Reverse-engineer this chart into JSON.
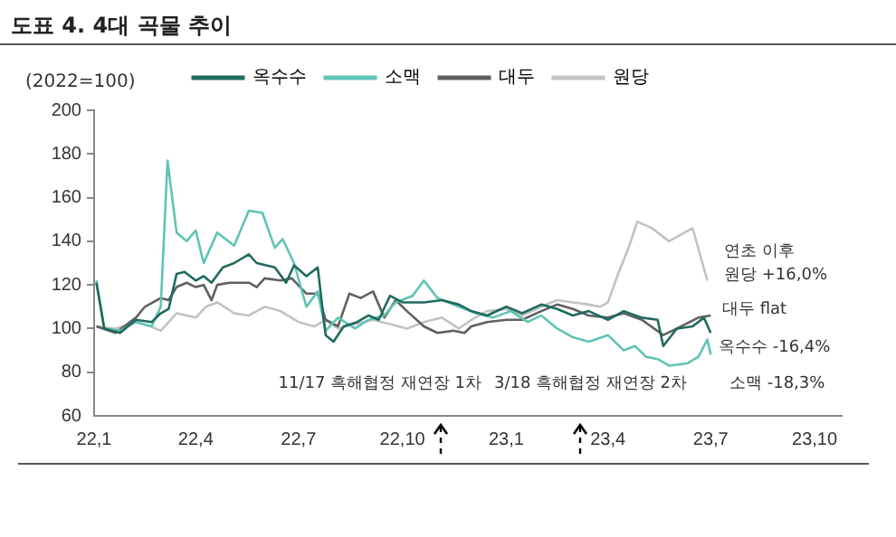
{
  "chart_data": {
    "type": "line",
    "title": "도표 4. 4대 곡물 추이",
    "ylabel": "(2022=100)",
    "xlim": [
      "2022-01-01",
      "2023-10-25"
    ],
    "xticks": [
      {
        "value": "2022-01-01",
        "label": "22,1"
      },
      {
        "value": "2022-04-01",
        "label": "22,4"
      },
      {
        "value": "2022-07-01",
        "label": "22,7"
      },
      {
        "value": "2022-10-01",
        "label": "22,10"
      },
      {
        "value": "2023-01-01",
        "label": "23,1"
      },
      {
        "value": "2023-04-01",
        "label": "23,4"
      },
      {
        "value": "2023-07-01",
        "label": "23,7"
      },
      {
        "value": "2023-10-01",
        "label": "23,10"
      }
    ],
    "ylim": [
      60,
      200
    ],
    "yticks": [
      60,
      80,
      100,
      120,
      140,
      160,
      180,
      200
    ],
    "grid": false,
    "legend": "top",
    "marker": "none",
    "line_style": "solid",
    "series": [
      {
        "name": "옥수수",
        "color": "#1e6b5e",
        "x": [
          "2022-01-03",
          "2022-01-10",
          "2022-01-24",
          "2022-02-07",
          "2022-02-21",
          "2022-03-01",
          "2022-03-08",
          "2022-03-15",
          "2022-03-22",
          "2022-04-01",
          "2022-04-08",
          "2022-04-15",
          "2022-04-25",
          "2022-05-05",
          "2022-05-18",
          "2022-05-25",
          "2022-06-10",
          "2022-06-20",
          "2022-06-27",
          "2022-07-08",
          "2022-07-18",
          "2022-07-25",
          "2022-08-01",
          "2022-08-10",
          "2022-08-22",
          "2022-09-01",
          "2022-09-10",
          "2022-09-20",
          "2022-10-01",
          "2022-10-20",
          "2022-11-05",
          "2022-11-20",
          "2022-12-01",
          "2022-12-15",
          "2023-01-01",
          "2023-01-15",
          "2023-02-01",
          "2023-02-15",
          "2023-03-01",
          "2023-03-15",
          "2023-04-01",
          "2023-04-15",
          "2023-05-01",
          "2023-05-15",
          "2023-05-20",
          "2023-06-01",
          "2023-06-15",
          "2023-06-25",
          "2023-07-01"
        ],
        "values": [
          121,
          100,
          98,
          104,
          103,
          107,
          109,
          125,
          126,
          122,
          124,
          121,
          128,
          130,
          134,
          130,
          128,
          121,
          129,
          124,
          128,
          97,
          94,
          101,
          103,
          106,
          104,
          115,
          112,
          112,
          113,
          111,
          108,
          106,
          110,
          107,
          111,
          109,
          106,
          108,
          104,
          108,
          105,
          104,
          92,
          100,
          101,
          105,
          98
        ]
      },
      {
        "name": "소맥",
        "color": "#5fc4b5",
        "x": [
          "2022-01-03",
          "2022-01-10",
          "2022-01-24",
          "2022-02-07",
          "2022-02-21",
          "2022-03-01",
          "2022-03-07",
          "2022-03-15",
          "2022-03-24",
          "2022-04-01",
          "2022-04-08",
          "2022-04-20",
          "2022-05-05",
          "2022-05-18",
          "2022-05-30",
          "2022-06-10",
          "2022-06-17",
          "2022-06-27",
          "2022-07-08",
          "2022-07-18",
          "2022-07-25",
          "2022-08-05",
          "2022-08-20",
          "2022-09-01",
          "2022-09-15",
          "2022-09-25",
          "2022-10-10",
          "2022-10-20",
          "2022-11-01",
          "2022-11-20",
          "2022-12-05",
          "2022-12-20",
          "2023-01-05",
          "2023-01-20",
          "2023-02-01",
          "2023-02-15",
          "2023-03-01",
          "2023-03-15",
          "2023-04-01",
          "2023-04-15",
          "2023-04-25",
          "2023-05-05",
          "2023-05-15",
          "2023-05-25",
          "2023-06-10",
          "2023-06-20",
          "2023-06-28",
          "2023-07-01"
        ],
        "values": [
          122,
          100,
          99,
          103,
          101,
          110,
          177,
          144,
          140,
          145,
          130,
          144,
          138,
          154,
          153,
          137,
          141,
          130,
          110,
          117,
          99,
          105,
          100,
          104,
          106,
          112,
          115,
          122,
          114,
          110,
          107,
          105,
          108,
          103,
          106,
          100,
          96,
          94,
          97,
          90,
          92,
          87,
          86,
          83,
          84,
          87,
          95,
          88
        ]
      },
      {
        "name": "대두",
        "color": "#606060",
        "x": [
          "2022-01-03",
          "2022-01-20",
          "2022-02-07",
          "2022-02-15",
          "2022-03-01",
          "2022-03-08",
          "2022-03-15",
          "2022-03-24",
          "2022-04-01",
          "2022-04-08",
          "2022-04-15",
          "2022-04-20",
          "2022-05-01",
          "2022-05-18",
          "2022-05-25",
          "2022-06-01",
          "2022-06-15",
          "2022-06-25",
          "2022-07-08",
          "2022-07-18",
          "2022-07-25",
          "2022-08-05",
          "2022-08-15",
          "2022-08-25",
          "2022-09-05",
          "2022-09-15",
          "2022-09-25",
          "2022-10-05",
          "2022-10-20",
          "2022-11-01",
          "2022-11-15",
          "2022-11-25",
          "2022-12-01",
          "2022-12-15",
          "2023-01-01",
          "2023-01-15",
          "2023-02-01",
          "2023-02-15",
          "2023-03-01",
          "2023-03-15",
          "2023-04-01",
          "2023-04-15",
          "2023-05-01",
          "2023-05-20",
          "2023-06-01",
          "2023-06-20",
          "2023-07-01"
        ],
        "values": [
          101,
          98,
          105,
          110,
          114,
          113,
          119,
          121,
          119,
          120,
          113,
          120,
          121,
          121,
          119,
          123,
          122,
          123,
          116,
          116,
          104,
          101,
          116,
          114,
          117,
          105,
          113,
          108,
          101,
          98,
          99,
          98,
          101,
          103,
          104,
          104,
          108,
          111,
          109,
          106,
          105,
          107,
          104,
          97,
          100,
          105,
          106
        ]
      },
      {
        "name": "원당",
        "color": "#c2c2c2",
        "x": [
          "2022-01-03",
          "2022-01-20",
          "2022-02-07",
          "2022-02-20",
          "2022-03-01",
          "2022-03-15",
          "2022-04-01",
          "2022-04-10",
          "2022-04-20",
          "2022-05-05",
          "2022-05-18",
          "2022-06-01",
          "2022-06-15",
          "2022-07-01",
          "2022-07-15",
          "2022-07-25",
          "2022-08-05",
          "2022-08-20",
          "2022-09-05",
          "2022-09-20",
          "2022-10-05",
          "2022-10-20",
          "2022-11-05",
          "2022-11-20",
          "2022-12-01",
          "2022-12-15",
          "2023-01-01",
          "2023-01-15",
          "2023-02-01",
          "2023-02-15",
          "2023-03-01",
          "2023-03-15",
          "2023-03-25",
          "2023-04-01",
          "2023-04-10",
          "2023-04-20",
          "2023-04-27",
          "2023-05-10",
          "2023-05-25",
          "2023-06-15",
          "2023-06-28"
        ],
        "values": [
          101,
          100,
          103,
          101,
          99,
          107,
          105,
          110,
          112,
          107,
          106,
          110,
          108,
          103,
          101,
          104,
          100,
          102,
          104,
          102,
          100,
          103,
          105,
          100,
          104,
          108,
          109,
          106,
          110,
          113,
          112,
          111,
          110,
          112,
          125,
          138,
          149,
          146,
          140,
          146,
          122
        ]
      }
    ],
    "annotations": [
      "11/17 흑해협정 재연장 1차",
      "3/18 흑해협정 재연장 2차",
      "연초 이후\n원당 +16,0%",
      "대두 flat",
      "옥수수 -16,4%",
      "소맥 -18,3%"
    ]
  }
}
